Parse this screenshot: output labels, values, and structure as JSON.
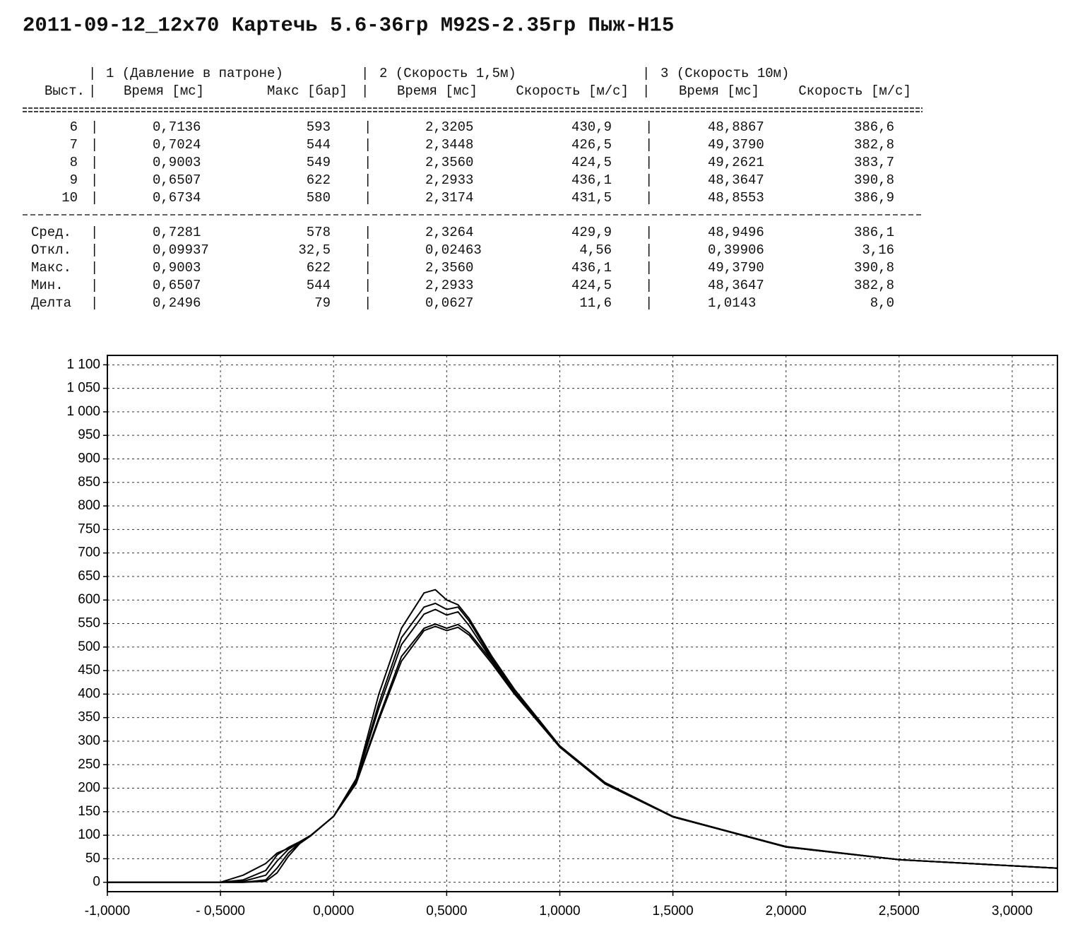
{
  "header": {
    "title": "2011-09-12_12x70 Картечь 5.6-36гр M92S-2.35гр Пыж-Н15"
  },
  "table": {
    "group_headers": [
      "1 (Давление в патроне)",
      "2 (Скорость 1,5м)",
      "3 (Скорость 10м)"
    ],
    "columns": [
      "Выст.",
      "Время [мс]",
      "Макс [бар]",
      "Время [мс]",
      "Скорость [м/с]",
      "Время [мс]",
      "Скорость [м/с]"
    ],
    "rows": [
      [
        "6",
        "0,7136",
        "593",
        "2,3205",
        "430,9",
        "48,8867",
        "386,6"
      ],
      [
        "7",
        "0,7024",
        "544",
        "2,3448",
        "426,5",
        "49,3790",
        "382,8"
      ],
      [
        "8",
        "0,9003",
        "549",
        "2,3560",
        "424,5",
        "49,2621",
        "383,7"
      ],
      [
        "9",
        "0,6507",
        "622",
        "2,2933",
        "436,1",
        "48,3647",
        "390,8"
      ],
      [
        "10",
        "0,6734",
        "580",
        "2,3174",
        "431,5",
        "48,8553",
        "386,9"
      ]
    ],
    "stats": [
      [
        "Сред.",
        "0,7281",
        "578",
        "2,3264",
        "429,9",
        "48,9496",
        "386,1"
      ],
      [
        "Откл.",
        "0,09937",
        "32,5",
        "0,02463",
        "4,56",
        "0,39906",
        "3,16"
      ],
      [
        "Макс.",
        "0,9003",
        "622",
        "2,3560",
        "436,1",
        "49,3790",
        "390,8"
      ],
      [
        "Мин.",
        "0,6507",
        "544",
        "2,2933",
        "424,5",
        "48,3647",
        "382,8"
      ],
      [
        "Делта",
        "0,2496",
        "79",
        "0,0627",
        "11,6",
        "1,0143",
        "8,0"
      ]
    ]
  },
  "chart_data": {
    "type": "line",
    "x": [
      -1,
      -0.5,
      -0.4,
      -0.3,
      -0.25,
      -0.2,
      -0.15,
      -0.1,
      0,
      0.1,
      0.2,
      0.3,
      0.4,
      0.45,
      0.5,
      0.55,
      0.6,
      0.7,
      0.8,
      1.0,
      1.2,
      1.5,
      2.0,
      2.5,
      3.0,
      3.2
    ],
    "series": [
      {
        "color": "#000000",
        "values": [
          0,
          0,
          15,
          40,
          62,
          72,
          85,
          100,
          140,
          220,
          400,
          540,
          615,
          622,
          600,
          590,
          560,
          480,
          410,
          290,
          212,
          140,
          76,
          48,
          35,
          30
        ]
      },
      {
        "color": "#000000",
        "values": [
          0,
          0,
          5,
          25,
          58,
          74,
          86,
          100,
          140,
          218,
          380,
          520,
          585,
          593,
          580,
          585,
          555,
          475,
          405,
          290,
          210,
          140,
          75,
          48,
          35,
          30
        ]
      },
      {
        "color": "#000000",
        "values": [
          0,
          0,
          2,
          15,
          45,
          70,
          85,
          100,
          140,
          216,
          370,
          505,
          570,
          580,
          568,
          575,
          545,
          472,
          404,
          288,
          210,
          139,
          75,
          48,
          35,
          30
        ]
      },
      {
        "color": "#000000",
        "values": [
          0,
          0,
          0,
          5,
          30,
          62,
          84,
          100,
          140,
          212,
          350,
          480,
          540,
          549,
          540,
          548,
          530,
          470,
          402,
          288,
          209,
          139,
          75,
          48,
          35,
          30
        ]
      },
      {
        "color": "#000000",
        "values": [
          0,
          0,
          0,
          2,
          20,
          55,
          82,
          99,
          140,
          210,
          345,
          470,
          535,
          544,
          535,
          542,
          525,
          465,
          400,
          287,
          209,
          139,
          75,
          48,
          35,
          30
        ]
      }
    ],
    "xlim": [
      -1,
      3.2
    ],
    "ylim": [
      -20,
      1120
    ],
    "xticks": [
      {
        "value": -1,
        "label": "-1,0000"
      },
      {
        "value": -0.5,
        "label": "- 0,5000"
      },
      {
        "value": 0,
        "label": "0,0000"
      },
      {
        "value": 0.5,
        "label": "0,5000"
      },
      {
        "value": 1,
        "label": "1,0000"
      },
      {
        "value": 1.5,
        "label": "1,5000"
      },
      {
        "value": 2,
        "label": "2,0000"
      },
      {
        "value": 2.5,
        "label": "2,5000"
      },
      {
        "value": 3,
        "label": "3,0000"
      }
    ],
    "yticks": [
      0,
      50,
      100,
      150,
      200,
      250,
      300,
      350,
      400,
      450,
      500,
      550,
      600,
      650,
      700,
      750,
      800,
      850,
      900,
      950,
      {
        "value": 1000,
        "label": "1 000"
      },
      {
        "value": 1050,
        "label": "1 050"
      },
      {
        "value": 1100,
        "label": "1 100"
      }
    ],
    "grid": true
  }
}
